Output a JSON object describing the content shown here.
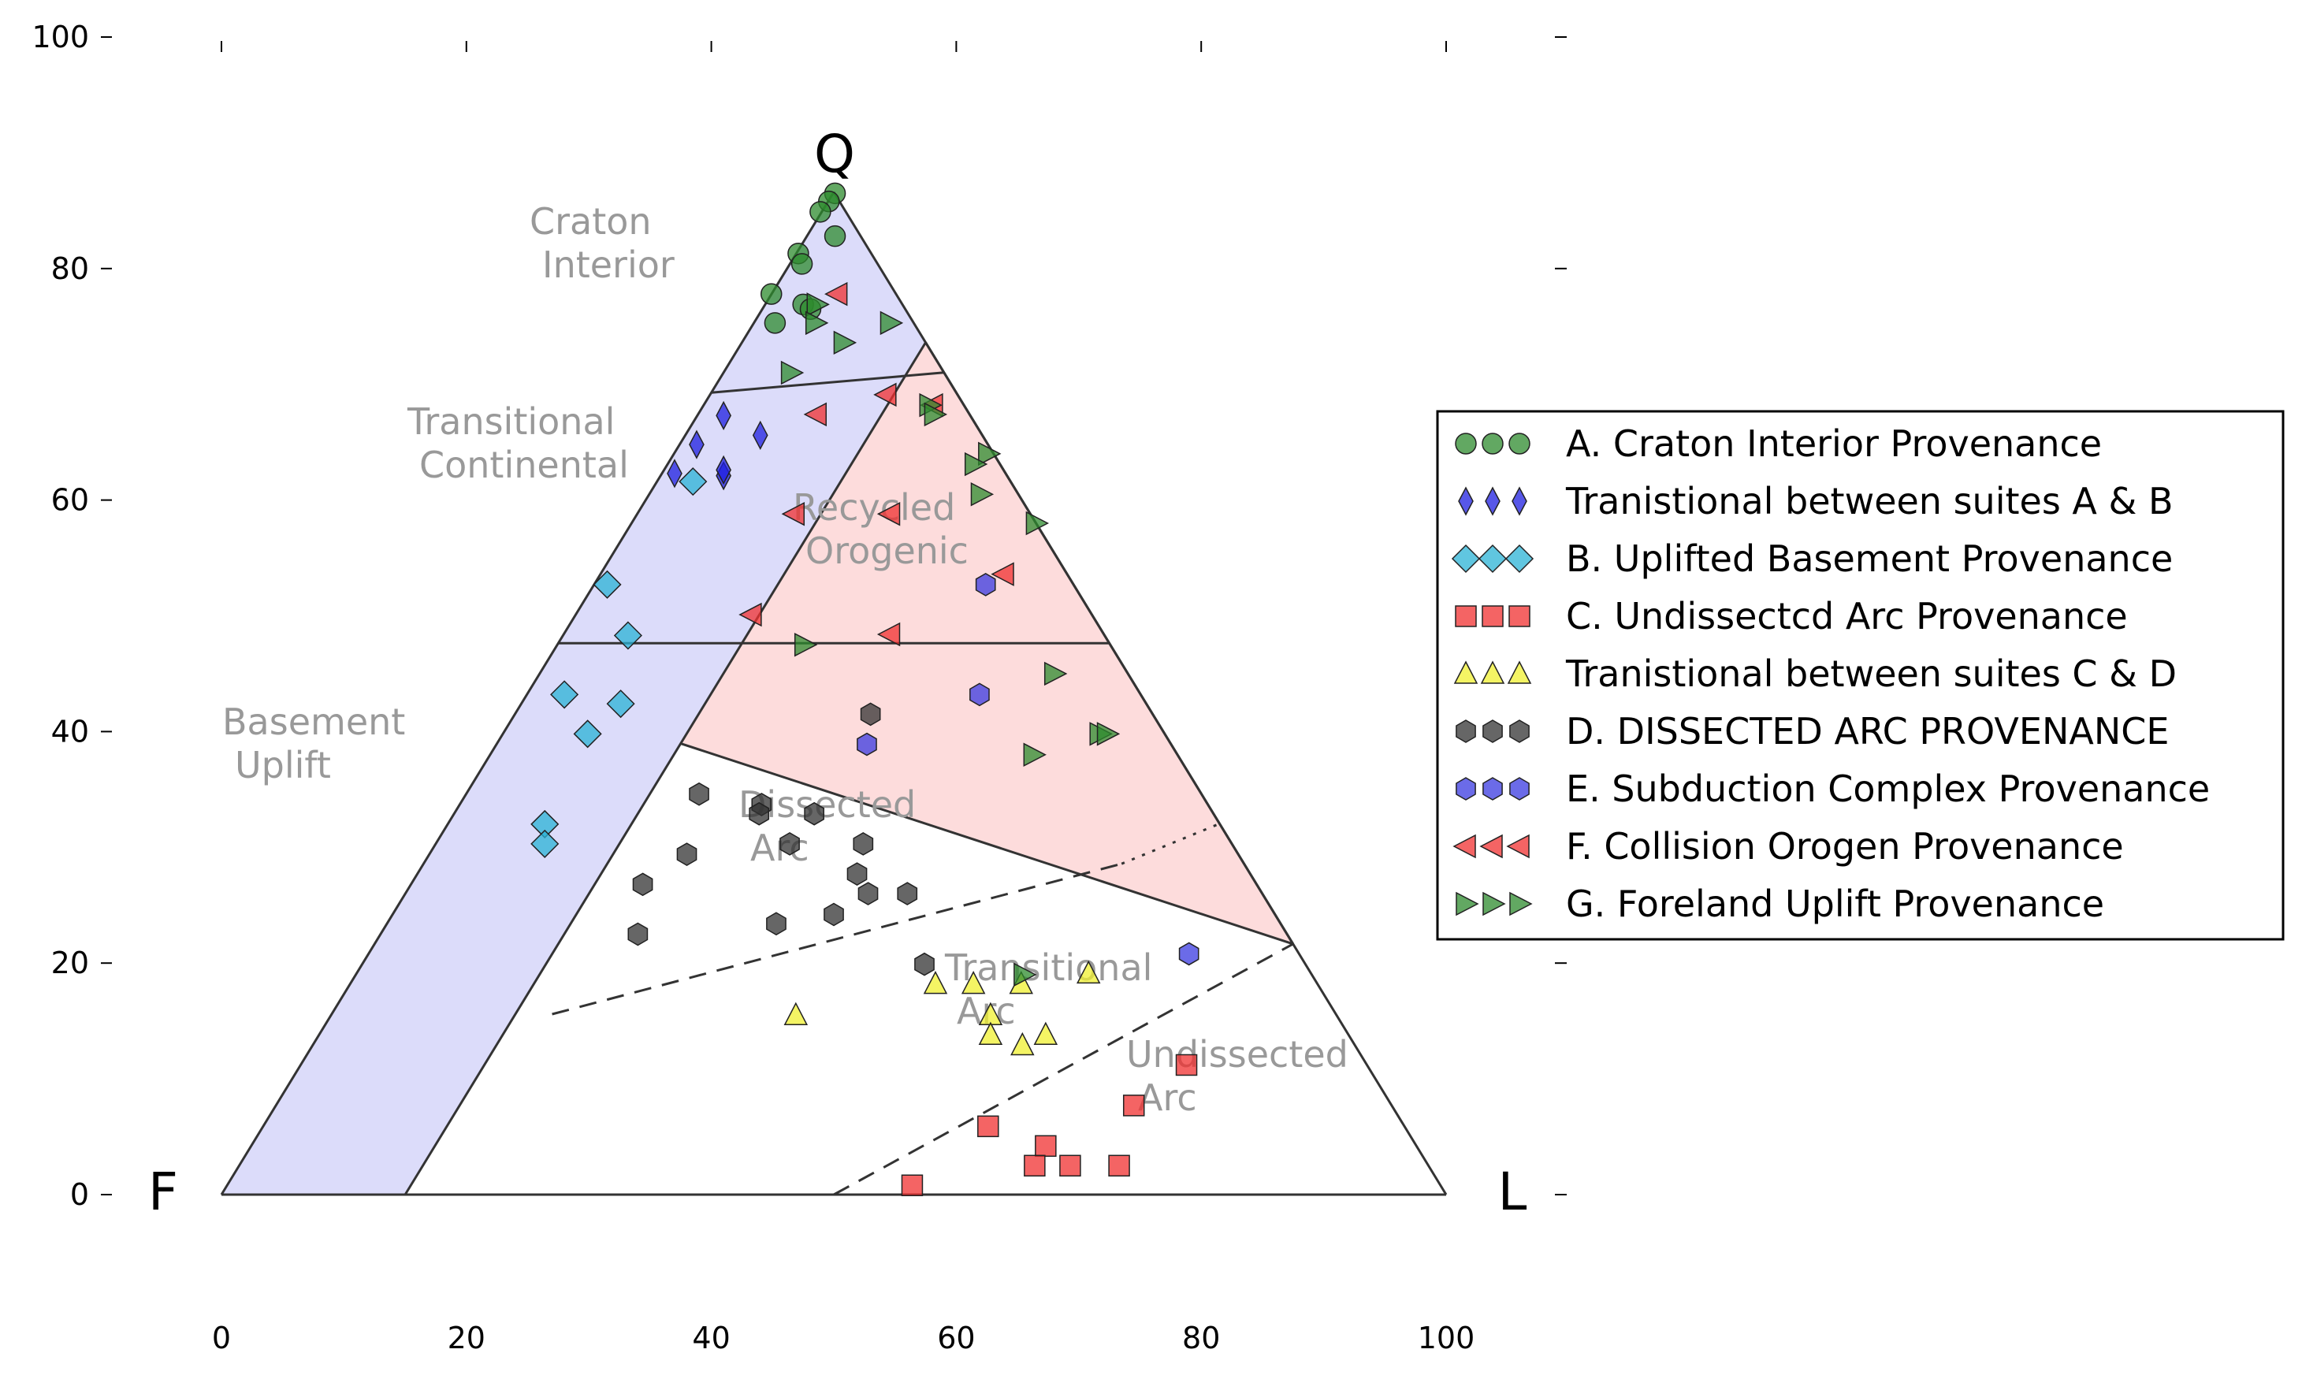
{
  "chart_data": {
    "type": "scatter",
    "subtype": "ternary QFL provenance diagram",
    "vertices": {
      "top": "Q",
      "left": "F",
      "right": "L"
    },
    "x_axis": {
      "ticks": [
        0,
        20,
        40,
        60,
        80,
        100
      ],
      "range": [
        0,
        100
      ]
    },
    "y_axis": {
      "ticks": [
        0,
        20,
        40,
        60,
        80,
        100
      ],
      "range": [
        -9,
        100
      ]
    },
    "grid": false,
    "legend_position": "center-right",
    "regions": [
      {
        "key": "craton",
        "label": "Craton\n Interior",
        "color": "#999999"
      },
      {
        "key": "transitional_continental",
        "label": "Transitional\n Continental",
        "color": "#999999"
      },
      {
        "key": "basement",
        "label": "Basement\n Uplift",
        "color": "#999999"
      },
      {
        "key": "recycled",
        "label": "Recycled\n Orogenic",
        "color": "#999999"
      },
      {
        "key": "dissected",
        "label": "Dissected\n Arc",
        "color": "#999999"
      },
      {
        "key": "transitional_arc",
        "label": "Transitional\n Arc",
        "color": "#999999"
      },
      {
        "key": "undissected",
        "label": "Undissected\n Arc",
        "color": "#999999"
      }
    ],
    "field_colors": {
      "continental_block": "#dcdcfa",
      "recycled_orogen": "#fddcdc",
      "outline": "#333333"
    },
    "series": [
      {
        "name": "A. Craton Interior Provenance",
        "marker": "circle",
        "color": "#2e8b2e",
        "points": [
          [
            50.1,
            86.5
          ],
          [
            49.6,
            85.8
          ],
          [
            48.9,
            84.9
          ],
          [
            50.1,
            82.8
          ],
          [
            47.1,
            81.3
          ],
          [
            47.4,
            80.4
          ],
          [
            44.9,
            77.8
          ],
          [
            47.5,
            76.9
          ],
          [
            48.1,
            76.5
          ],
          [
            45.2,
            75.3
          ]
        ]
      },
      {
        "name": "Tranistional between suites A & B",
        "marker": "thin_diamond",
        "color": "#1f1fe0",
        "points": [
          [
            41.0,
            67.3
          ],
          [
            38.8,
            64.8
          ],
          [
            44.0,
            65.6
          ],
          [
            37.0,
            62.3
          ],
          [
            41.0,
            62.1
          ],
          [
            41.0,
            62.6
          ]
        ]
      },
      {
        "name": "B. Uplifted Basement Provenance",
        "marker": "diamond",
        "color": "#2bb3d6",
        "points": [
          [
            38.5,
            61.6
          ],
          [
            31.5,
            52.7
          ],
          [
            33.2,
            48.3
          ],
          [
            28.0,
            43.2
          ],
          [
            32.6,
            42.4
          ],
          [
            29.9,
            39.8
          ],
          [
            26.4,
            32.0
          ],
          [
            26.4,
            30.3
          ]
        ]
      },
      {
        "name": "C. Undissectcd Arc Provenance",
        "marker": "square",
        "color": "#f03030",
        "points": [
          [
            62.6,
            5.9
          ],
          [
            67.3,
            4.2
          ],
          [
            66.4,
            2.5
          ],
          [
            69.3,
            2.5
          ],
          [
            73.3,
            2.5
          ],
          [
            56.4,
            0.8
          ],
          [
            74.5,
            7.7
          ],
          [
            78.8,
            11.2
          ]
        ]
      },
      {
        "name": "Tranistional between suites C & D",
        "marker": "triangle",
        "color": "#f0f030",
        "points": [
          [
            46.9,
            15.5
          ],
          [
            58.3,
            18.2
          ],
          [
            61.4,
            18.2
          ],
          [
            65.3,
            18.2
          ],
          [
            70.8,
            19.1
          ],
          [
            62.8,
            15.5
          ],
          [
            62.8,
            13.8
          ],
          [
            65.4,
            12.9
          ],
          [
            67.3,
            13.8
          ]
        ]
      },
      {
        "name": "D. DISSECTED ARC PROVENANCE",
        "marker": "hexagon",
        "color": "#333333",
        "points": [
          [
            39.0,
            34.6
          ],
          [
            44.1,
            33.7
          ],
          [
            43.9,
            32.9
          ],
          [
            48.4,
            32.9
          ],
          [
            46.4,
            30.3
          ],
          [
            52.4,
            30.3
          ],
          [
            38.0,
            29.4
          ],
          [
            51.9,
            27.7
          ],
          [
            34.4,
            26.8
          ],
          [
            52.8,
            26.0
          ],
          [
            56.0,
            26.0
          ],
          [
            45.3,
            23.4
          ],
          [
            50.0,
            24.2
          ],
          [
            34.0,
            22.5
          ],
          [
            57.4,
            19.9
          ],
          [
            53.0,
            41.5
          ]
        ]
      },
      {
        "name": "E. Subduction Complex Provenance",
        "marker": "hexagon",
        "color": "#3a3ae0",
        "points": [
          [
            62.4,
            52.7
          ],
          [
            61.9,
            43.2
          ],
          [
            52.7,
            38.9
          ],
          [
            79.0,
            20.8
          ]
        ]
      },
      {
        "name": "F. Collision Orogen Provenance",
        "marker": "triangle_left",
        "color": "#f03030",
        "points": [
          [
            50.3,
            77.8
          ],
          [
            54.3,
            69.1
          ],
          [
            58.1,
            68.2
          ],
          [
            48.6,
            67.4
          ],
          [
            46.8,
            58.8
          ],
          [
            54.6,
            58.8
          ],
          [
            63.9,
            53.6
          ],
          [
            43.3,
            50.1
          ],
          [
            54.6,
            48.4
          ]
        ]
      },
      {
        "name": "G. Foreland Uplift Provenance",
        "marker": "triangle_right",
        "color": "#2e8b2e",
        "points": [
          [
            48.6,
            76.9
          ],
          [
            48.5,
            75.3
          ],
          [
            54.6,
            75.3
          ],
          [
            50.8,
            73.6
          ],
          [
            46.5,
            71.0
          ],
          [
            57.8,
            68.2
          ],
          [
            58.2,
            67.4
          ],
          [
            62.6,
            64.0
          ],
          [
            61.5,
            63.1
          ],
          [
            62.0,
            60.5
          ],
          [
            66.5,
            58.0
          ],
          [
            47.6,
            47.5
          ],
          [
            68.0,
            45.0
          ],
          [
            66.3,
            38.0
          ],
          [
            71.7,
            39.8
          ],
          [
            72.3,
            39.8
          ],
          [
            65.5,
            19.0
          ]
        ]
      }
    ]
  }
}
